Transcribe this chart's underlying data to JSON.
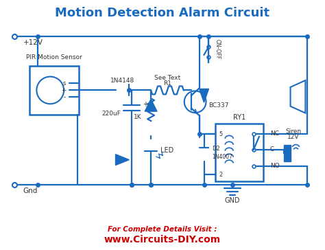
{
  "title": "Motion Detection Alarm Circuit",
  "title_color": "#1a6bbf",
  "bg_color": "#ffffff",
  "line_color": "#1a6bbf",
  "text_color": "#333333",
  "footer_text1": "For Complete Details Visit :",
  "footer_text2": "www.Circuits-DIY.com",
  "footer_color": "#cc0000",
  "labels": {
    "plus12v": "+12V",
    "gnd_label": "Gnd",
    "pir_label": "PIR Motion Sensor",
    "diode1": "1N4148",
    "see_text": "See Text",
    "r1": "R1",
    "bc337": "BC337",
    "on_off": "ON-OFF",
    "cap": "220uF",
    "r1k": "1K",
    "d2": "D2",
    "d2_type": "1N4007",
    "led": "LED",
    "ry1": "RY1",
    "nc": "NC",
    "no": "NO",
    "c_label": "C",
    "gnd_sym": "GND",
    "siren": "Siren",
    "siren2": "12V",
    "pin5": "5",
    "pin2": "2"
  }
}
